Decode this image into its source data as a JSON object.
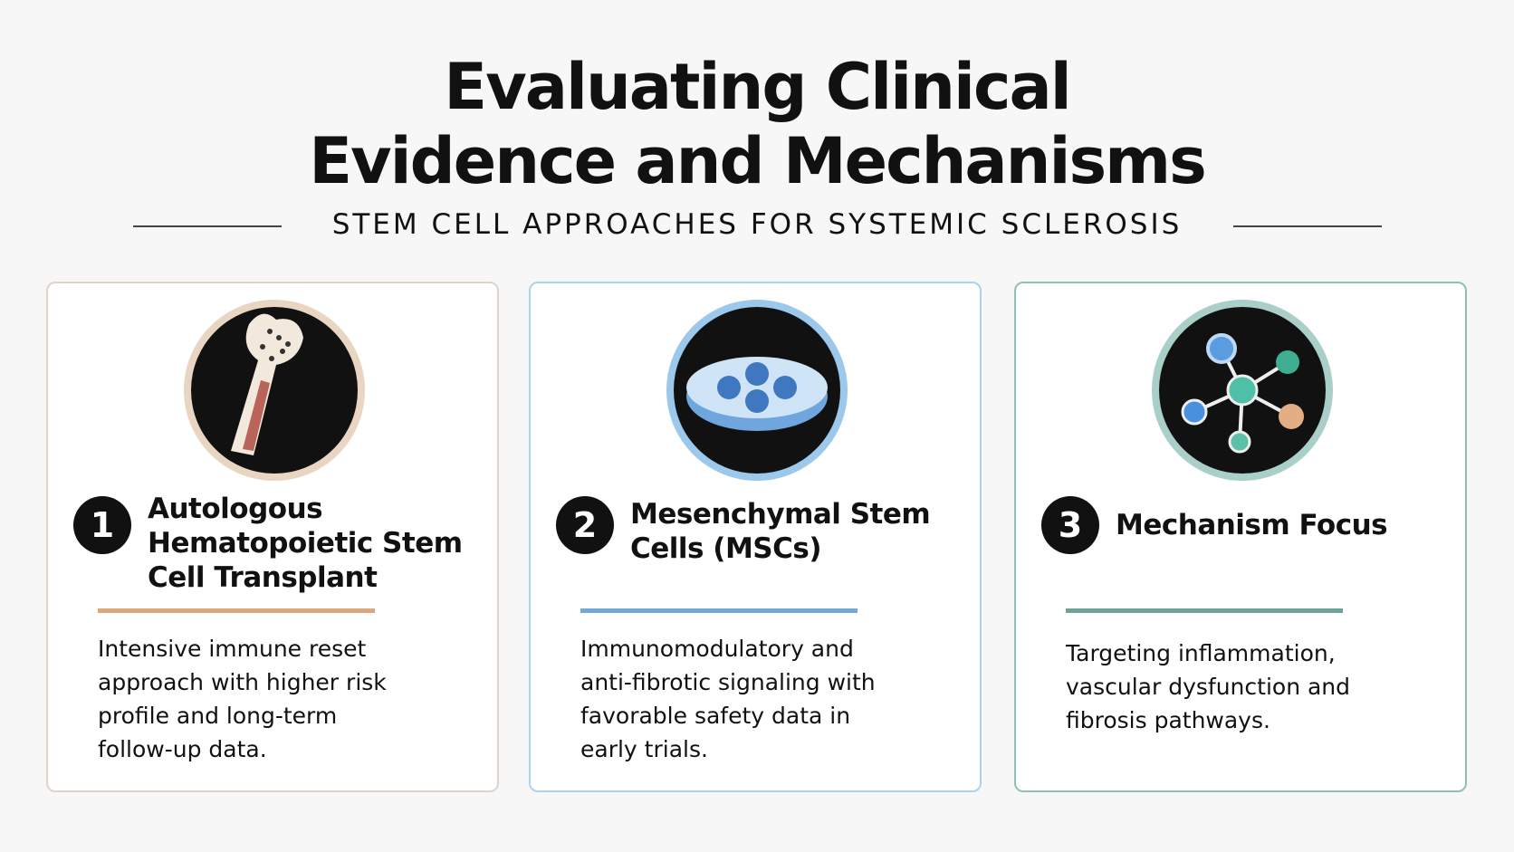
{
  "header": {
    "title": "Evaluating Clinical Evidence and Mechanisms",
    "subtitle": "STEM CELL APPROACHES FOR SYSTEMIC SCLEROSIS"
  },
  "cards": [
    {
      "number": "1",
      "title": "Autologous Hematopoietic Stem Cell Transplant",
      "description": "Intensive immune reset approach with higher risk profile and long-term follow-up data."
    },
    {
      "number": "2",
      "title": "Mesenchymal Stem Cells (MSCs)",
      "description": "Immunomodulatory and anti-fibrotic signaling with favorable safety data in early trials."
    },
    {
      "number": "3",
      "title": "Mechanism Focus",
      "description": "Targeting inflammation, vascular dysfunction and fibrosis pathways."
    }
  ]
}
